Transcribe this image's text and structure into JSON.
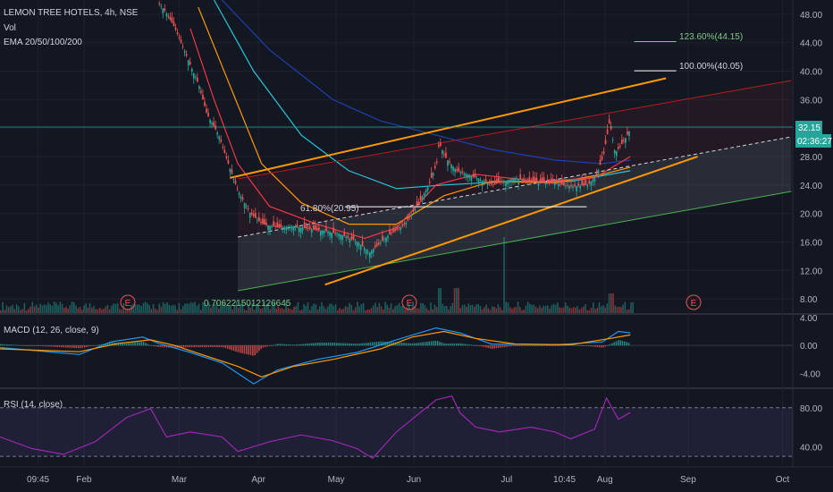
{
  "header": {
    "symbol": "LEMON TREE HOTELS, 4h, NSE",
    "volume_label": "Vol",
    "ema_label": "EMA 20/50/100/200"
  },
  "fib_labels": {
    "level_1236": "123.60%(44.15)",
    "level_1000": "100.00%(40.05)",
    "level_618": "61.80%(20.95)"
  },
  "volume_note": "0.7062215012126645",
  "earnings_marker": "E",
  "price_tags": {
    "last_price": "32.15",
    "countdown": "02:36:27"
  },
  "macd": {
    "label": "MACD (12, 26, close, 9)"
  },
  "rsi": {
    "label": "RSI (14, close)"
  },
  "colors": {
    "background": "#131722",
    "candle_up": "#26a69a",
    "candle_down": "#ef5350",
    "ema20": "#f23645",
    "ema50": "#ff9800",
    "ema100": "#26c6da",
    "ema200": "#1e40af",
    "channel": "#ff9800",
    "rsi": "#9c27b0",
    "macd": "#2196f3",
    "signal": "#ff9800"
  },
  "chart_data": [
    {
      "type": "candlestick",
      "title": "LEMON TREE HOTELS, 4h, NSE",
      "x_tick_labels": [
        "09:45",
        "Feb",
        "Mar",
        "Apr",
        "May",
        "Jun",
        "Jul",
        "10:45",
        "Aug",
        "Sep",
        "Oct"
      ],
      "y_tick_labels": [
        "48.00",
        "44.00",
        "40.00",
        "36.00",
        "32.00",
        "28.00",
        "24.00",
        "20.00",
        "16.00",
        "12.00",
        "8.00"
      ],
      "ylim": [
        6,
        50
      ],
      "price_path": [
        [
          0.2,
          49.5
        ],
        [
          0.21,
          48
        ],
        [
          0.22,
          46
        ],
        [
          0.235,
          42
        ],
        [
          0.25,
          38
        ],
        [
          0.26,
          34
        ],
        [
          0.275,
          31
        ],
        [
          0.29,
          26
        ],
        [
          0.3,
          23
        ],
        [
          0.315,
          20
        ],
        [
          0.33,
          18.5
        ],
        [
          0.35,
          18
        ],
        [
          0.37,
          18.2
        ],
        [
          0.39,
          17.8
        ],
        [
          0.41,
          17.5
        ],
        [
          0.43,
          17
        ],
        [
          0.45,
          16
        ],
        [
          0.465,
          14.5
        ],
        [
          0.475,
          15.5
        ],
        [
          0.49,
          17
        ],
        [
          0.51,
          18.5
        ],
        [
          0.525,
          21
        ],
        [
          0.54,
          24
        ],
        [
          0.55,
          27
        ],
        [
          0.553,
          30
        ],
        [
          0.56,
          28
        ],
        [
          0.575,
          26
        ],
        [
          0.6,
          25
        ],
        [
          0.62,
          24
        ],
        [
          0.635,
          24.5
        ],
        [
          0.65,
          25
        ],
        [
          0.66,
          24.5
        ],
        [
          0.68,
          24.3
        ],
        [
          0.7,
          24.2
        ],
        [
          0.72,
          23.8
        ],
        [
          0.74,
          24
        ],
        [
          0.75,
          25
        ],
        [
          0.76,
          28
        ],
        [
          0.765,
          31
        ],
        [
          0.768,
          33
        ],
        [
          0.775,
          28.5
        ],
        [
          0.785,
          30
        ],
        [
          0.795,
          32
        ]
      ],
      "ema20": [
        [
          0.24,
          46
        ],
        [
          0.27,
          36
        ],
        [
          0.3,
          27
        ],
        [
          0.34,
          21
        ],
        [
          0.4,
          18.5
        ],
        [
          0.46,
          16.5
        ],
        [
          0.5,
          18
        ],
        [
          0.55,
          24
        ],
        [
          0.6,
          25.5
        ],
        [
          0.68,
          24.5
        ],
        [
          0.75,
          25
        ],
        [
          0.795,
          28
        ]
      ],
      "ema50": [
        [
          0.25,
          49
        ],
        [
          0.29,
          38
        ],
        [
          0.33,
          27
        ],
        [
          0.38,
          21.5
        ],
        [
          0.44,
          18.5
        ],
        [
          0.5,
          18.5
        ],
        [
          0.56,
          22.5
        ],
        [
          0.62,
          24.5
        ],
        [
          0.7,
          24.3
        ],
        [
          0.76,
          25.5
        ],
        [
          0.795,
          26.5
        ]
      ],
      "ema100": [
        [
          0.27,
          50
        ],
        [
          0.32,
          40
        ],
        [
          0.38,
          31
        ],
        [
          0.44,
          26
        ],
        [
          0.5,
          23.5
        ],
        [
          0.56,
          24
        ],
        [
          0.64,
          24.5
        ],
        [
          0.72,
          24.5
        ],
        [
          0.795,
          26
        ]
      ],
      "ema200": [
        [
          0.28,
          50
        ],
        [
          0.34,
          43
        ],
        [
          0.42,
          36
        ],
        [
          0.48,
          33
        ],
        [
          0.55,
          31
        ],
        [
          0.62,
          29
        ],
        [
          0.7,
          27.5
        ],
        [
          0.76,
          27
        ],
        [
          0.795,
          27.5
        ]
      ],
      "channel_upper": [
        [
          0.29,
          25
        ],
        [
          0.84,
          39
        ]
      ],
      "channel_lower": [
        [
          0.41,
          10
        ],
        [
          0.88,
          28
        ]
      ],
      "fib_levels": {
        "level_618": 20.95,
        "level_1000": 40.05,
        "level_1236": 44.15
      },
      "horizontal_line": 32.15,
      "last_price": 32.15
    },
    {
      "type": "macd",
      "title": "MACD (12, 26, close, 9)",
      "y_tick_labels": [
        "4.00",
        "0.00",
        "-4.00"
      ],
      "ylim": [
        -6,
        4.5
      ],
      "macd_line": [
        [
          0.0,
          -0.3
        ],
        [
          0.05,
          -0.8
        ],
        [
          0.1,
          -1.3
        ],
        [
          0.14,
          0.5
        ],
        [
          0.18,
          1.2
        ],
        [
          0.2,
          0.3
        ],
        [
          0.24,
          -1.0
        ],
        [
          0.28,
          -2.5
        ],
        [
          0.3,
          -4.0
        ],
        [
          0.32,
          -5.5
        ],
        [
          0.35,
          -3.5
        ],
        [
          0.4,
          -2.0
        ],
        [
          0.45,
          -1.0
        ],
        [
          0.5,
          0.8
        ],
        [
          0.55,
          2.5
        ],
        [
          0.58,
          1.8
        ],
        [
          0.62,
          0.2
        ],
        [
          0.7,
          0.1
        ],
        [
          0.76,
          0.5
        ],
        [
          0.78,
          2.0
        ],
        [
          0.795,
          1.8
        ]
      ],
      "signal_line": [
        [
          0.0,
          -0.5
        ],
        [
          0.05,
          -0.7
        ],
        [
          0.1,
          -0.9
        ],
        [
          0.15,
          0.3
        ],
        [
          0.19,
          0.8
        ],
        [
          0.22,
          0.0
        ],
        [
          0.26,
          -1.5
        ],
        [
          0.3,
          -3.0
        ],
        [
          0.33,
          -4.5
        ],
        [
          0.37,
          -3.0
        ],
        [
          0.42,
          -2.0
        ],
        [
          0.48,
          -0.5
        ],
        [
          0.52,
          1.2
        ],
        [
          0.56,
          2.0
        ],
        [
          0.6,
          1.0
        ],
        [
          0.65,
          0.2
        ],
        [
          0.72,
          0.1
        ],
        [
          0.77,
          1.0
        ],
        [
          0.795,
          1.5
        ]
      ]
    },
    {
      "type": "rsi",
      "title": "RSI (14, close)",
      "y_tick_labels": [
        "80.00",
        "40.00"
      ],
      "ylim": [
        20,
        100
      ],
      "bands": [
        30,
        80
      ],
      "rsi_line": [
        [
          0.0,
          50
        ],
        [
          0.04,
          38
        ],
        [
          0.08,
          32
        ],
        [
          0.12,
          45
        ],
        [
          0.16,
          70
        ],
        [
          0.19,
          79
        ],
        [
          0.21,
          50
        ],
        [
          0.24,
          55
        ],
        [
          0.28,
          50
        ],
        [
          0.3,
          35
        ],
        [
          0.34,
          45
        ],
        [
          0.38,
          52
        ],
        [
          0.42,
          46
        ],
        [
          0.45,
          38
        ],
        [
          0.47,
          28
        ],
        [
          0.5,
          55
        ],
        [
          0.53,
          75
        ],
        [
          0.55,
          88
        ],
        [
          0.57,
          92
        ],
        [
          0.58,
          75
        ],
        [
          0.6,
          60
        ],
        [
          0.63,
          55
        ],
        [
          0.67,
          60
        ],
        [
          0.7,
          55
        ],
        [
          0.72,
          48
        ],
        [
          0.75,
          58
        ],
        [
          0.765,
          90
        ],
        [
          0.78,
          68
        ],
        [
          0.795,
          75
        ]
      ]
    }
  ]
}
